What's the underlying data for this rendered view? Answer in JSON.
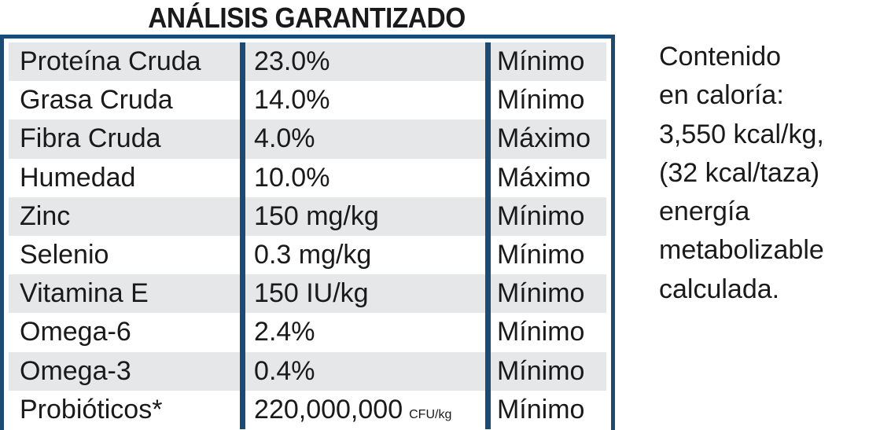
{
  "title": "ANÁLISIS GARANTIZADO",
  "rows": [
    {
      "nutrient": "Proteína Cruda",
      "value": "23.0%",
      "unit": "",
      "qualifier": "Mínimo"
    },
    {
      "nutrient": "Grasa Cruda",
      "value": "14.0%",
      "unit": "",
      "qualifier": "Mínimo"
    },
    {
      "nutrient": "Fibra Cruda",
      "value": "4.0%",
      "unit": "",
      "qualifier": "Máximo"
    },
    {
      "nutrient": "Humedad",
      "value": "10.0%",
      "unit": "",
      "qualifier": "Máximo"
    },
    {
      "nutrient": "Zinc",
      "value": "150 mg/kg",
      "unit": "",
      "qualifier": "Mínimo"
    },
    {
      "nutrient": "Selenio",
      "value": "0.3 mg/kg",
      "unit": "",
      "qualifier": "Mínimo"
    },
    {
      "nutrient": "Vitamina E",
      "value": "150 IU/kg",
      "unit": "",
      "qualifier": "Mínimo"
    },
    {
      "nutrient": "Omega-6",
      "value": "2.4%",
      "unit": "",
      "qualifier": "Mínimo"
    },
    {
      "nutrient": "Omega-3",
      "value": "0.4%",
      "unit": "",
      "qualifier": "Mínimo"
    },
    {
      "nutrient": "Probióticos*",
      "value": "220,000,000",
      "unit": "CFU/kg",
      "qualifier": "Mínimo"
    }
  ],
  "calorie_note": {
    "lines": [
      "Contenido",
      "en caloría:",
      "3,550 kcal/kg,",
      "(32 kcal/taza)",
      "energía",
      "metabolizable",
      "calculada."
    ]
  },
  "colors": {
    "border": "#1d4a73",
    "shade": "#e6e7e8",
    "text": "#1a1a1a"
  }
}
